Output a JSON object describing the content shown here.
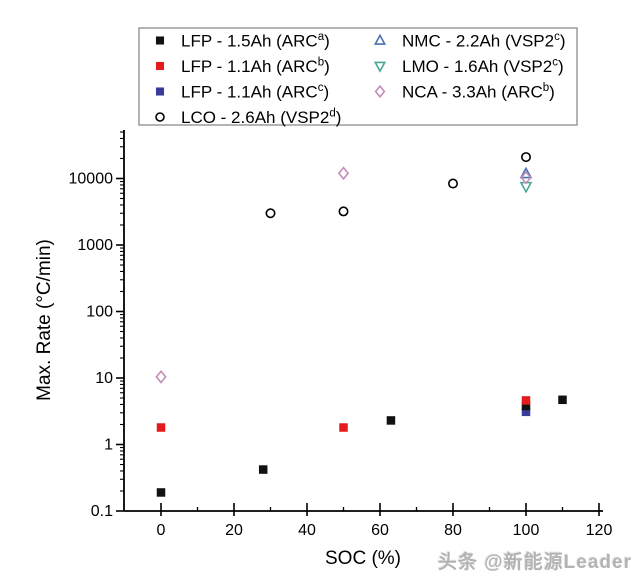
{
  "watermark": "头条 @新能源Leader",
  "chart_data": {
    "type": "scatter",
    "title": "",
    "xlabel": "SOC (%)",
    "ylabel": "Max. Rate (°C/min)",
    "x_scale": "linear",
    "y_scale": "log",
    "xlim": [
      -10,
      121
    ],
    "ylim": [
      0.1,
      54000
    ],
    "grid": false,
    "legend_position": "top-center",
    "x_ticks": [
      0,
      20,
      40,
      60,
      80,
      100,
      120
    ],
    "x_tick_labels": [
      "0",
      "20",
      "40",
      "60",
      "80",
      "100",
      "120"
    ],
    "x_minor_ticks": [
      10,
      30,
      50,
      70,
      90,
      110
    ],
    "y_ticks": [
      0.1,
      1,
      10,
      100,
      1000,
      10000
    ],
    "y_tick_labels": [
      "0.1",
      "1",
      "10",
      "100",
      "1000",
      "10000"
    ],
    "series": [
      {
        "id": "lco",
        "legend_base": "LCO - 2.6Ah (VSP2",
        "legend_sup": "d",
        "legend_end": ")",
        "marker": "circle",
        "color": "#000000",
        "filled": false,
        "legend_col": 0,
        "legend_row": 3,
        "points": [
          [
            30,
            3000
          ],
          [
            50,
            3200
          ],
          [
            80,
            8400
          ],
          [
            100,
            21000
          ]
        ]
      },
      {
        "id": "nmc",
        "legend_base": "NMC - 2.2Ah (VSP2",
        "legend_sup": "c",
        "legend_end": ")",
        "marker": "triangle-up",
        "color": "#4a72b2",
        "filled": false,
        "legend_col": 1,
        "legend_row": 0,
        "points": [
          [
            100,
            11800
          ]
        ]
      },
      {
        "id": "lmo",
        "legend_base": "LMO - 1.6Ah (VSP2",
        "legend_sup": "c",
        "legend_end": ")",
        "marker": "triangle-down",
        "color": "#48a893",
        "filled": false,
        "legend_col": 1,
        "legend_row": 1,
        "points": [
          [
            100,
            7600
          ]
        ]
      },
      {
        "id": "nca",
        "legend_base": "NCA - 3.3Ah (ARC",
        "legend_sup": "b",
        "legend_end": ")",
        "marker": "diamond",
        "color": "#c48cb8",
        "filled": false,
        "legend_col": 1,
        "legend_row": 2,
        "points": [
          [
            0,
            10.4
          ],
          [
            50,
            12000
          ],
          [
            100,
            10300
          ]
        ]
      },
      {
        "id": "lfp-11-arcc",
        "legend_base": "LFP - 1.1Ah (ARC",
        "legend_sup": "c",
        "legend_end": ")",
        "marker": "square",
        "color": "#3a3a9a",
        "filled": true,
        "legend_col": 0,
        "legend_row": 2,
        "points": [
          [
            100,
            3.1
          ]
        ]
      },
      {
        "id": "lfp-15-arca",
        "legend_base": "LFP - 1.5Ah (ARC",
        "legend_sup": "a",
        "legend_end": ")",
        "marker": "square",
        "color": "#111111",
        "filled": true,
        "legend_col": 0,
        "legend_row": 0,
        "points": [
          [
            0,
            0.19
          ],
          [
            28,
            0.42
          ],
          [
            63,
            2.3
          ],
          [
            100,
            3.8
          ],
          [
            110,
            4.7
          ]
        ]
      },
      {
        "id": "lfp-11-arcb",
        "legend_base": "LFP - 1.1Ah (ARC",
        "legend_sup": "b",
        "legend_end": ")",
        "marker": "square",
        "color": "#e41a1c",
        "filled": true,
        "legend_col": 0,
        "legend_row": 1,
        "points": [
          [
            0,
            1.8
          ],
          [
            50,
            1.8
          ],
          [
            100,
            4.6
          ]
        ]
      }
    ]
  }
}
